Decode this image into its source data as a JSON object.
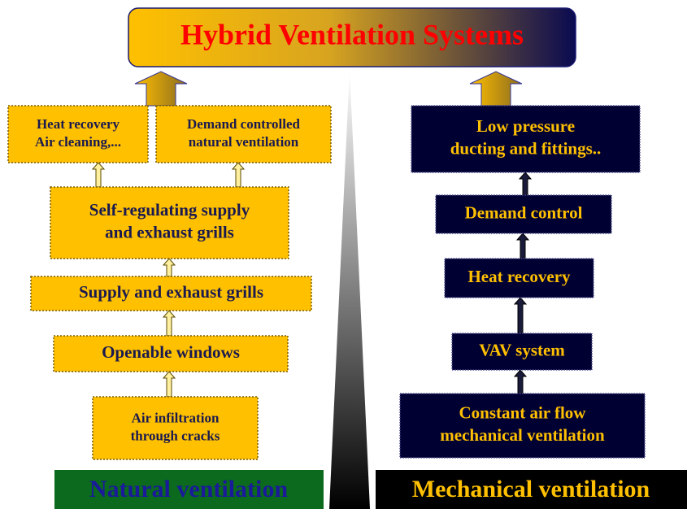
{
  "title": "Hybrid Ventilation Systems",
  "natural": {
    "label": "Natural ventilation",
    "boxes": [
      {
        "lines": [
          "Heat recovery",
          "Air cleaning,..."
        ]
      },
      {
        "lines": [
          "Demand controlled",
          "natural ventilation"
        ]
      },
      {
        "lines": [
          "Self-regulating supply",
          "and exhaust grills"
        ]
      },
      {
        "lines": [
          "Supply and exhaust grills"
        ]
      },
      {
        "lines": [
          "Openable  windows"
        ]
      },
      {
        "lines": [
          "Air infiltration",
          "through cracks"
        ]
      }
    ]
  },
  "mechanical": {
    "label": "Mechanical ventilation",
    "boxes": [
      {
        "lines": [
          "Low pressure",
          "ducting and fittings.."
        ]
      },
      {
        "lines": [
          "Demand control"
        ]
      },
      {
        "lines": [
          "Heat recovery"
        ]
      },
      {
        "lines": [
          "VAV system"
        ]
      },
      {
        "lines": [
          "Constant air flow",
          "mechanical ventilation"
        ]
      }
    ]
  }
}
